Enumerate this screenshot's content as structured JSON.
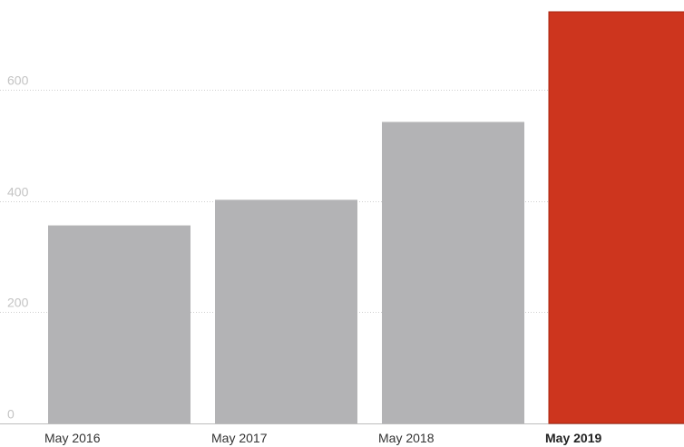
{
  "chart_data": {
    "type": "bar",
    "categories": [
      "May 2016",
      "May 2017",
      "May 2018",
      "May 2019"
    ],
    "values": [
      356,
      402,
      542,
      740
    ],
    "highlight_index": 3,
    "ylim": [
      0,
      740
    ],
    "yticks": [
      0,
      200,
      400,
      600
    ],
    "grid": true,
    "colors": {
      "bar": "#b3b3b5",
      "highlight": "#cd351e",
      "highlight_stroke": "#a8240f"
    },
    "title": "",
    "xlabel": "",
    "ylabel": ""
  }
}
